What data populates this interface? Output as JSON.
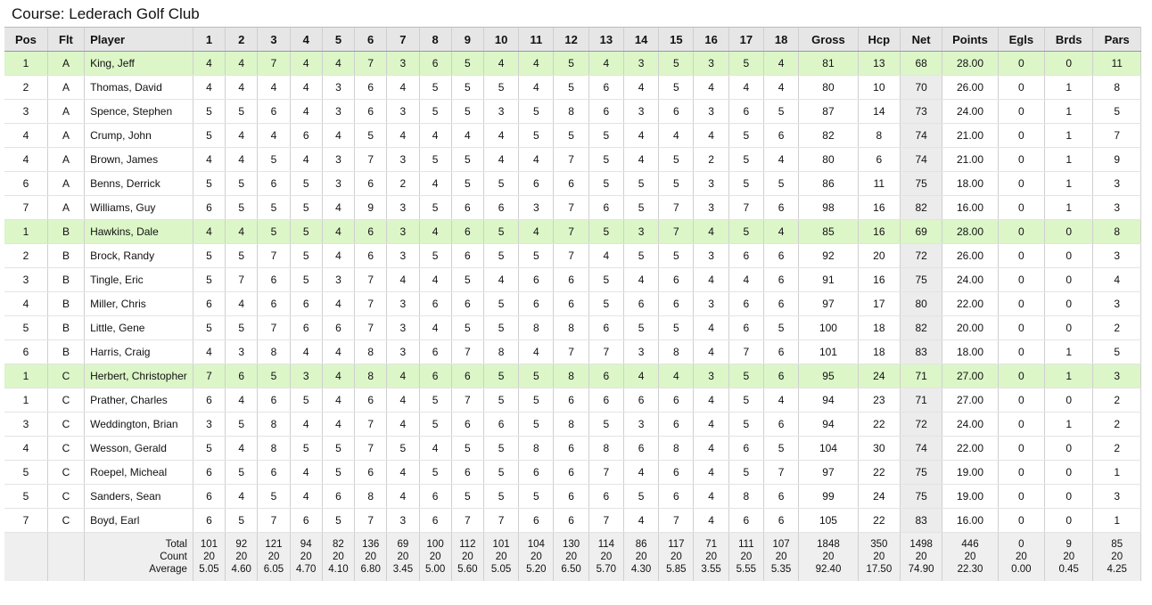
{
  "title": "Course: Lederach Golf Club",
  "headers": [
    "Pos",
    "Flt",
    "Player",
    "1",
    "2",
    "3",
    "4",
    "5",
    "6",
    "7",
    "8",
    "9",
    "10",
    "11",
    "12",
    "13",
    "14",
    "15",
    "16",
    "17",
    "18",
    "Gross",
    "Hcp",
    "Net",
    "Points",
    "Egls",
    "Brds",
    "Pars"
  ],
  "rows": [
    {
      "pos": "1",
      "flt": "A",
      "player": "King, Jeff",
      "holes": [
        "4",
        "4",
        "7",
        "4",
        "4",
        "7",
        "3",
        "6",
        "5",
        "4",
        "4",
        "5",
        "4",
        "3",
        "5",
        "3",
        "5",
        "4"
      ],
      "gross": "81",
      "hcp": "13",
      "net": "68",
      "points": "28.00",
      "egls": "0",
      "brds": "0",
      "pars": "11",
      "highlight": true
    },
    {
      "pos": "2",
      "flt": "A",
      "player": "Thomas, David",
      "holes": [
        "4",
        "4",
        "4",
        "4",
        "3",
        "6",
        "4",
        "5",
        "5",
        "5",
        "4",
        "5",
        "6",
        "4",
        "5",
        "4",
        "4",
        "4"
      ],
      "gross": "80",
      "hcp": "10",
      "net": "70",
      "points": "26.00",
      "egls": "0",
      "brds": "1",
      "pars": "8"
    },
    {
      "pos": "3",
      "flt": "A",
      "player": "Spence, Stephen",
      "holes": [
        "5",
        "5",
        "6",
        "4",
        "3",
        "6",
        "3",
        "5",
        "5",
        "3",
        "5",
        "8",
        "6",
        "3",
        "6",
        "3",
        "6",
        "5"
      ],
      "gross": "87",
      "hcp": "14",
      "net": "73",
      "points": "24.00",
      "egls": "0",
      "brds": "1",
      "pars": "5"
    },
    {
      "pos": "4",
      "flt": "A",
      "player": "Crump, John",
      "holes": [
        "5",
        "4",
        "4",
        "6",
        "4",
        "5",
        "4",
        "4",
        "4",
        "4",
        "5",
        "5",
        "5",
        "4",
        "4",
        "4",
        "5",
        "6"
      ],
      "gross": "82",
      "hcp": "8",
      "net": "74",
      "points": "21.00",
      "egls": "0",
      "brds": "1",
      "pars": "7"
    },
    {
      "pos": "4",
      "flt": "A",
      "player": "Brown, James",
      "holes": [
        "4",
        "4",
        "5",
        "4",
        "3",
        "7",
        "3",
        "5",
        "5",
        "4",
        "4",
        "7",
        "5",
        "4",
        "5",
        "2",
        "5",
        "4"
      ],
      "gross": "80",
      "hcp": "6",
      "net": "74",
      "points": "21.00",
      "egls": "0",
      "brds": "1",
      "pars": "9"
    },
    {
      "pos": "6",
      "flt": "A",
      "player": "Benns, Derrick",
      "holes": [
        "5",
        "5",
        "6",
        "5",
        "3",
        "6",
        "2",
        "4",
        "5",
        "5",
        "6",
        "6",
        "5",
        "5",
        "5",
        "3",
        "5",
        "5"
      ],
      "gross": "86",
      "hcp": "11",
      "net": "75",
      "points": "18.00",
      "egls": "0",
      "brds": "1",
      "pars": "3",
      "gap": true
    },
    {
      "pos": "7",
      "flt": "A",
      "player": "Williams, Guy",
      "holes": [
        "6",
        "5",
        "5",
        "5",
        "4",
        "9",
        "3",
        "5",
        "6",
        "6",
        "3",
        "7",
        "6",
        "5",
        "7",
        "3",
        "7",
        "6"
      ],
      "gross": "98",
      "hcp": "16",
      "net": "82",
      "points": "16.00",
      "egls": "0",
      "brds": "1",
      "pars": "3"
    },
    {
      "pos": "1",
      "flt": "B",
      "player": "Hawkins, Dale",
      "holes": [
        "4",
        "4",
        "5",
        "5",
        "4",
        "6",
        "3",
        "4",
        "6",
        "5",
        "4",
        "7",
        "5",
        "3",
        "7",
        "4",
        "5",
        "4"
      ],
      "gross": "85",
      "hcp": "16",
      "net": "69",
      "points": "28.00",
      "egls": "0",
      "brds": "0",
      "pars": "8",
      "highlight": true,
      "group": true
    },
    {
      "pos": "2",
      "flt": "B",
      "player": "Brock, Randy",
      "holes": [
        "5",
        "5",
        "7",
        "5",
        "4",
        "6",
        "3",
        "5",
        "6",
        "5",
        "5",
        "7",
        "4",
        "5",
        "5",
        "3",
        "6",
        "6"
      ],
      "gross": "92",
      "hcp": "20",
      "net": "72",
      "points": "26.00",
      "egls": "0",
      "brds": "0",
      "pars": "3"
    },
    {
      "pos": "3",
      "flt": "B",
      "player": "Tingle, Eric",
      "holes": [
        "5",
        "7",
        "6",
        "5",
        "3",
        "7",
        "4",
        "4",
        "5",
        "4",
        "6",
        "6",
        "5",
        "4",
        "6",
        "4",
        "4",
        "6"
      ],
      "gross": "91",
      "hcp": "16",
      "net": "75",
      "points": "24.00",
      "egls": "0",
      "brds": "0",
      "pars": "4"
    },
    {
      "pos": "4",
      "flt": "B",
      "player": "Miller, Chris",
      "holes": [
        "6",
        "4",
        "6",
        "6",
        "4",
        "7",
        "3",
        "6",
        "6",
        "5",
        "6",
        "6",
        "5",
        "6",
        "6",
        "3",
        "6",
        "6"
      ],
      "gross": "97",
      "hcp": "17",
      "net": "80",
      "points": "22.00",
      "egls": "0",
      "brds": "0",
      "pars": "3"
    },
    {
      "pos": "5",
      "flt": "B",
      "player": "Little, Gene",
      "holes": [
        "5",
        "5",
        "7",
        "6",
        "6",
        "7",
        "3",
        "4",
        "5",
        "5",
        "8",
        "8",
        "6",
        "5",
        "5",
        "4",
        "6",
        "5"
      ],
      "gross": "100",
      "hcp": "18",
      "net": "82",
      "points": "20.00",
      "egls": "0",
      "brds": "0",
      "pars": "2"
    },
    {
      "pos": "6",
      "flt": "B",
      "player": "Harris, Craig",
      "holes": [
        "4",
        "3",
        "8",
        "4",
        "4",
        "8",
        "3",
        "6",
        "7",
        "8",
        "4",
        "7",
        "7",
        "3",
        "8",
        "4",
        "7",
        "6"
      ],
      "gross": "101",
      "hcp": "18",
      "net": "83",
      "points": "18.00",
      "egls": "0",
      "brds": "1",
      "pars": "5",
      "gap": true
    },
    {
      "pos": "1",
      "flt": "C",
      "player": "Herbert, Christopher",
      "holes": [
        "7",
        "6",
        "5",
        "3",
        "4",
        "8",
        "4",
        "6",
        "6",
        "5",
        "5",
        "8",
        "6",
        "4",
        "4",
        "3",
        "5",
        "6"
      ],
      "gross": "95",
      "hcp": "24",
      "net": "71",
      "points": "27.00",
      "egls": "0",
      "brds": "1",
      "pars": "3",
      "highlight": true,
      "group": true
    },
    {
      "pos": "1",
      "flt": "C",
      "player": "Prather, Charles",
      "holes": [
        "6",
        "4",
        "6",
        "5",
        "4",
        "6",
        "4",
        "5",
        "7",
        "5",
        "5",
        "6",
        "6",
        "6",
        "6",
        "4",
        "5",
        "4"
      ],
      "gross": "94",
      "hcp": "23",
      "net": "71",
      "points": "27.00",
      "egls": "0",
      "brds": "0",
      "pars": "2"
    },
    {
      "pos": "3",
      "flt": "C",
      "player": "Weddington, Brian",
      "holes": [
        "3",
        "5",
        "8",
        "4",
        "4",
        "7",
        "4",
        "5",
        "6",
        "6",
        "5",
        "8",
        "5",
        "3",
        "6",
        "4",
        "5",
        "6"
      ],
      "gross": "94",
      "hcp": "22",
      "net": "72",
      "points": "24.00",
      "egls": "0",
      "brds": "1",
      "pars": "2"
    },
    {
      "pos": "4",
      "flt": "C",
      "player": "Wesson, Gerald",
      "holes": [
        "5",
        "4",
        "8",
        "5",
        "5",
        "7",
        "5",
        "4",
        "5",
        "5",
        "8",
        "6",
        "8",
        "6",
        "8",
        "4",
        "6",
        "5"
      ],
      "gross": "104",
      "hcp": "30",
      "net": "74",
      "points": "22.00",
      "egls": "0",
      "brds": "0",
      "pars": "2"
    },
    {
      "pos": "5",
      "flt": "C",
      "player": "Roepel, Micheal",
      "holes": [
        "6",
        "5",
        "6",
        "4",
        "5",
        "6",
        "4",
        "5",
        "6",
        "5",
        "6",
        "6",
        "7",
        "4",
        "6",
        "4",
        "5",
        "7"
      ],
      "gross": "97",
      "hcp": "22",
      "net": "75",
      "points": "19.00",
      "egls": "0",
      "brds": "0",
      "pars": "1"
    },
    {
      "pos": "5",
      "flt": "C",
      "player": "Sanders, Sean",
      "holes": [
        "6",
        "4",
        "5",
        "4",
        "6",
        "8",
        "4",
        "6",
        "5",
        "5",
        "5",
        "6",
        "6",
        "5",
        "6",
        "4",
        "8",
        "6"
      ],
      "gross": "99",
      "hcp": "24",
      "net": "75",
      "points": "19.00",
      "egls": "0",
      "brds": "0",
      "pars": "3",
      "gap": true
    },
    {
      "pos": "7",
      "flt": "C",
      "player": "Boyd, Earl",
      "holes": [
        "6",
        "5",
        "7",
        "6",
        "5",
        "7",
        "3",
        "6",
        "7",
        "7",
        "6",
        "6",
        "7",
        "4",
        "7",
        "4",
        "6",
        "6"
      ],
      "gross": "105",
      "hcp": "22",
      "net": "83",
      "points": "16.00",
      "egls": "0",
      "brds": "0",
      "pars": "1"
    }
  ],
  "footer": {
    "labels": [
      "Total",
      "Count",
      "Average"
    ],
    "cols": [
      [
        "101",
        "20",
        "5.05"
      ],
      [
        "92",
        "20",
        "4.60"
      ],
      [
        "121",
        "20",
        "6.05"
      ],
      [
        "94",
        "20",
        "4.70"
      ],
      [
        "82",
        "20",
        "4.10"
      ],
      [
        "136",
        "20",
        "6.80"
      ],
      [
        "69",
        "20",
        "3.45"
      ],
      [
        "100",
        "20",
        "5.00"
      ],
      [
        "112",
        "20",
        "5.60"
      ],
      [
        "101",
        "20",
        "5.05"
      ],
      [
        "104",
        "20",
        "5.20"
      ],
      [
        "130",
        "20",
        "6.50"
      ],
      [
        "114",
        "20",
        "5.70"
      ],
      [
        "86",
        "20",
        "4.30"
      ],
      [
        "117",
        "20",
        "5.85"
      ],
      [
        "71",
        "20",
        "3.55"
      ],
      [
        "111",
        "20",
        "5.55"
      ],
      [
        "107",
        "20",
        "5.35"
      ],
      [
        "1848",
        "20",
        "92.40"
      ],
      [
        "350",
        "20",
        "17.50"
      ],
      [
        "1498",
        "20",
        "74.90"
      ],
      [
        "446",
        "20",
        "22.30"
      ],
      [
        "0",
        "20",
        "0.00"
      ],
      [
        "9",
        "20",
        "0.45"
      ],
      [
        "85",
        "20",
        "4.25"
      ]
    ]
  },
  "colors": {
    "highlight": "#dcf6c8",
    "header": "#e6e6e6",
    "net_col": "#ececec"
  }
}
